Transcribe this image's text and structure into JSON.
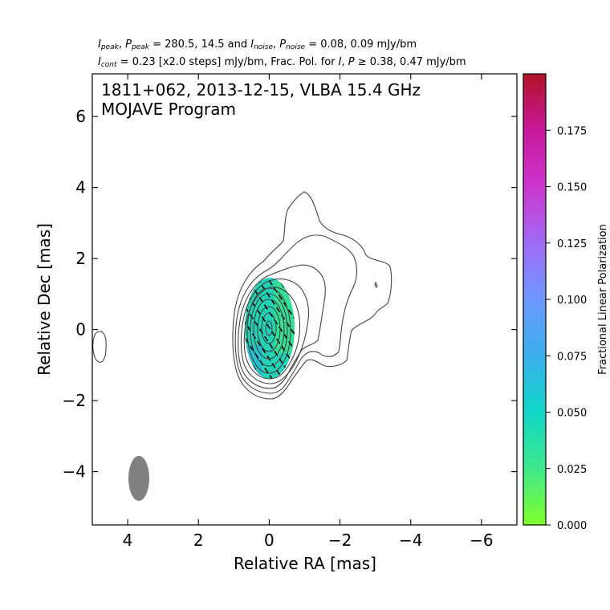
{
  "header": {
    "line1": {
      "i_peak_sym": "I",
      "i_peak_sub": "peak",
      "p_peak_sym": "P",
      "p_peak_sub": "peak",
      "peak_values": "= 280.5, 14.5 and",
      "i_noise_sym": "I",
      "i_noise_sub": "noise",
      "p_noise_sym": "P",
      "p_noise_sub": "noise",
      "noise_values": "= 0.08, 0.09 mJy/bm"
    },
    "line2": {
      "i_cont_sym": "I",
      "i_cont_sub": "cont",
      "cont_text": "= 0.23 [x2.0 steps] mJy/bm, Frac. Pol. for",
      "i_sym": "I",
      "p_sym": "P",
      "cutoff_text": "≥ 0.38, 0.47 mJy/bm"
    }
  },
  "chart_data": {
    "type": "contour",
    "title_line1": "1811+062, 2013-12-15, VLBA 15.4 GHz",
    "title_line2": "MOJAVE Program",
    "xlabel": "Relative RA [mas]",
    "ylabel": "Relative Dec [mas]",
    "xlim": [
      5,
      -7
    ],
    "ylim": [
      -5.5,
      7.2
    ],
    "xticks": [
      4,
      2,
      0,
      -2,
      -4,
      -6
    ],
    "xtick_labels": [
      "4",
      "2",
      "0",
      "−2",
      "−4",
      "−6"
    ],
    "yticks": [
      6,
      4,
      2,
      0,
      -2,
      -4
    ],
    "ytick_labels": [
      "6",
      "4",
      "2",
      "0",
      "−2",
      "−4"
    ],
    "grid": false,
    "contour_levels_mjy": [
      0.23,
      0.46,
      0.92,
      1.84,
      3.68,
      7.36,
      14.72,
      29.44,
      58.88,
      117.76,
      235.52
    ],
    "core": {
      "ra": 0.0,
      "dec": 0.0
    },
    "jet_direction": "north-west",
    "beam": {
      "ra": 3.7,
      "dec": -4.3,
      "major_mas": 1.3,
      "minor_mas": 0.6,
      "pa_deg": 0
    },
    "frac_pol_region": {
      "ra": 0.0,
      "dec": -0.1,
      "half_width_mas": 0.7,
      "half_height_mas": 1.5,
      "value": 0.055
    },
    "colorbar": {
      "label": "Fractional Linear Polarization",
      "min": 0.0,
      "max": 0.2,
      "ticks": [
        0.0,
        0.025,
        0.05,
        0.075,
        0.1,
        0.125,
        0.15,
        0.175
      ],
      "tick_labels": [
        "0.000",
        "0.025",
        "0.050",
        "0.075",
        "0.100",
        "0.125",
        "0.150",
        "0.175"
      ],
      "colors": [
        "#7fff2a",
        "#3fe88c",
        "#10d6c8",
        "#3ab0ec",
        "#6e98ff",
        "#a06af5",
        "#cc36ce",
        "#c8189a",
        "#b01426"
      ]
    }
  }
}
